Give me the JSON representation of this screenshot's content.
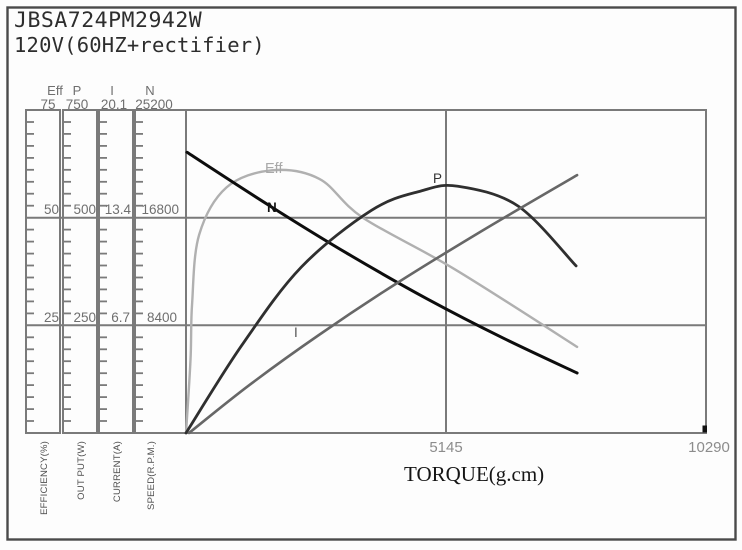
{
  "window": {
    "title_line1": "JBSA724PM2942W",
    "title_line2": "120V(60HZ+rectifier)"
  },
  "chart_data": {
    "type": "line",
    "title": "JBSA724PM2942W 120V(60HZ+rectifier)",
    "xlabel": "TORQUE(g.cm)",
    "xlim": [
      0,
      10290
    ],
    "x_ticks": [
      "5145",
      "10290"
    ],
    "grid": "on",
    "colors": {
      "grid": "#7a7a7a",
      "frame": "#4a4a4a",
      "axis_text": "#6f6f6f"
    },
    "axes": [
      {
        "name": "Eff",
        "label": "EFFICIENCY(%)",
        "max": 75,
        "ticks": [
          "75",
          "50",
          "25"
        ]
      },
      {
        "name": "P",
        "label": "OUT PUT(W)",
        "max": 750,
        "ticks": [
          "750",
          "500",
          "250"
        ]
      },
      {
        "name": "I",
        "label": "CURRENT(A)",
        "max": 20.1,
        "ticks": [
          "20.1",
          "13.4",
          "6.7"
        ]
      },
      {
        "name": "N",
        "label": "SPEED(R.P.M.)",
        "max": 25200,
        "ticks": [
          "25200",
          "16800",
          "8400"
        ]
      }
    ],
    "series": [
      {
        "name": "Eff",
        "axis": "EFFICIENCY(%)",
        "axis_max": 75,
        "color": "#b0b0b0",
        "width": 2.4,
        "points": [
          [
            0,
            0
          ],
          [
            90,
            17
          ],
          [
            120,
            30
          ],
          [
            260,
            46
          ],
          [
            800,
            57
          ],
          [
            1700,
            61
          ],
          [
            2640,
            59
          ],
          [
            3500,
            50
          ],
          [
            5320,
            38
          ],
          [
            7740,
            20
          ]
        ]
      },
      {
        "name": "N",
        "axis": "SPEED(R.P.M.)",
        "axis_max": 25200,
        "color": "#0d0d0d",
        "width": 3,
        "points": [
          [
            20,
            21900
          ],
          [
            1650,
            17740
          ],
          [
            3230,
            13920
          ],
          [
            4770,
            10470
          ],
          [
            6280,
            7400
          ],
          [
            7740,
            4680
          ]
        ]
      },
      {
        "name": "P",
        "axis": "OUT PUT(W)",
        "axis_max": 750,
        "color": "#2f2f2f",
        "width": 2.8,
        "points": [
          [
            0,
            0
          ],
          [
            1100,
            203
          ],
          [
            2280,
            385
          ],
          [
            3670,
            517
          ],
          [
            4650,
            562
          ],
          [
            5380,
            573
          ],
          [
            6570,
            527
          ],
          [
            7720,
            388
          ]
        ]
      },
      {
        "name": "I",
        "axis": "CURRENT(A)",
        "axis_max": 20.1,
        "color": "#676767",
        "width": 2.6,
        "points": [
          [
            60,
            0
          ],
          [
            1260,
            3.0
          ],
          [
            2630,
            6.1
          ],
          [
            4160,
            9.3
          ],
          [
            5870,
            12.6
          ],
          [
            7740,
            16.05
          ]
        ]
      }
    ],
    "curve_labels": [
      {
        "text": "Eff",
        "color": "#a9a9a9"
      },
      {
        "text": "N",
        "color": "#111111"
      },
      {
        "text": "P",
        "color": "#333333"
      },
      {
        "text": "I",
        "color": "#525252"
      }
    ]
  }
}
